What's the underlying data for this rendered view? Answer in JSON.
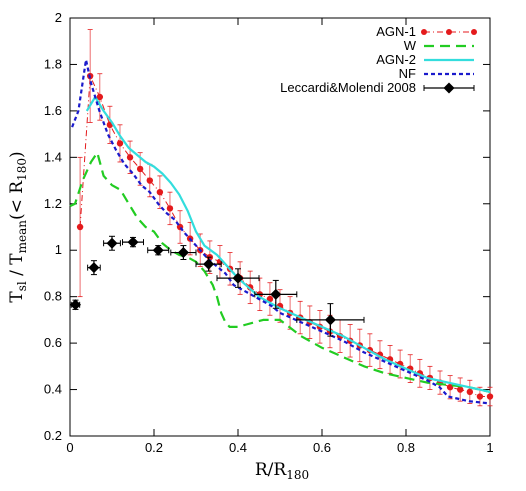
{
  "chart_data": {
    "type": "line",
    "xlim": [
      0,
      1
    ],
    "ylim": [
      0.2,
      2
    ],
    "xticks": [
      0,
      0.2,
      0.4,
      0.6,
      0.8,
      1
    ],
    "yticks": [
      0.2,
      0.4,
      0.6,
      0.8,
      1,
      1.2,
      1.4,
      1.6,
      1.8,
      2
    ],
    "xtick_labels": [
      "0",
      "0.2",
      "0.4",
      "0.6",
      "0.8",
      "1"
    ],
    "ytick_labels": [
      "0.2",
      "0.4",
      "0.6",
      "0.8",
      "1",
      "1.2",
      "1.4",
      "1.6",
      "1.8",
      "2"
    ],
    "xlabel": "R/R180",
    "ylabel": "Tsl / Tmean(< R180)",
    "grid": false,
    "legend_position": "top-right",
    "series": [
      {
        "name": "AGN-1",
        "color": "#e41a1c",
        "style": "dash-dot-points",
        "x": [
          0.024,
          0.048,
          0.071,
          0.095,
          0.119,
          0.143,
          0.167,
          0.19,
          0.214,
          0.238,
          0.262,
          0.286,
          0.31,
          0.333,
          0.357,
          0.381,
          0.405,
          0.429,
          0.452,
          0.476,
          0.5,
          0.524,
          0.548,
          0.571,
          0.595,
          0.619,
          0.643,
          0.667,
          0.69,
          0.714,
          0.738,
          0.762,
          0.786,
          0.81,
          0.833,
          0.857,
          0.881,
          0.905,
          0.929,
          0.952,
          0.976,
          1.0
        ],
        "y": [
          1.1,
          1.75,
          1.66,
          1.54,
          1.46,
          1.4,
          1.35,
          1.3,
          1.25,
          1.18,
          1.1,
          1.05,
          1.0,
          0.97,
          0.95,
          0.92,
          0.88,
          0.84,
          0.81,
          0.79,
          0.76,
          0.73,
          0.71,
          0.69,
          0.67,
          0.65,
          0.63,
          0.61,
          0.59,
          0.57,
          0.55,
          0.53,
          0.51,
          0.49,
          0.47,
          0.45,
          0.43,
          0.41,
          0.4,
          0.39,
          0.37,
          0.37
        ],
        "yerr": [
          0.3,
          0.2,
          0.1,
          0.08,
          0.08,
          0.07,
          0.07,
          0.07,
          0.07,
          0.07,
          0.07,
          0.07,
          0.07,
          0.07,
          0.07,
          0.07,
          0.07,
          0.07,
          0.07,
          0.07,
          0.07,
          0.07,
          0.07,
          0.07,
          0.07,
          0.07,
          0.07,
          0.07,
          0.07,
          0.07,
          0.06,
          0.06,
          0.06,
          0.06,
          0.06,
          0.05,
          0.05,
          0.05,
          0.05,
          0.05,
          0.04,
          0.04
        ]
      },
      {
        "name": "W",
        "color": "#22cc22",
        "style": "dashed",
        "x": [
          0.0,
          0.012,
          0.03,
          0.05,
          0.065,
          0.08,
          0.1,
          0.12,
          0.14,
          0.16,
          0.18,
          0.2,
          0.22,
          0.24,
          0.26,
          0.28,
          0.3,
          0.32,
          0.34,
          0.35,
          0.36,
          0.37,
          0.38,
          0.4,
          0.42,
          0.44,
          0.46,
          0.48,
          0.5,
          0.55,
          0.6,
          0.65,
          0.7,
          0.75,
          0.8,
          0.85,
          0.9,
          0.95,
          1.0
        ],
        "y": [
          1.19,
          1.2,
          1.3,
          1.38,
          1.42,
          1.32,
          1.28,
          1.26,
          1.2,
          1.14,
          1.1,
          1.08,
          1.03,
          1.0,
          0.98,
          0.97,
          0.95,
          0.91,
          0.85,
          0.8,
          0.73,
          0.69,
          0.67,
          0.67,
          0.68,
          0.69,
          0.7,
          0.7,
          0.7,
          0.63,
          0.58,
          0.54,
          0.5,
          0.47,
          0.45,
          0.43,
          0.42,
          0.41,
          0.39
        ]
      },
      {
        "name": "AGN-2",
        "color": "#33dddd",
        "style": "solid",
        "x": [
          0.04,
          0.06,
          0.08,
          0.1,
          0.12,
          0.14,
          0.16,
          0.18,
          0.2,
          0.22,
          0.24,
          0.26,
          0.28,
          0.3,
          0.32,
          0.35,
          0.4,
          0.45,
          0.5,
          0.55,
          0.6,
          0.65,
          0.7,
          0.75,
          0.8,
          0.85,
          0.9,
          0.95,
          1.0
        ],
        "y": [
          1.6,
          1.66,
          1.6,
          1.55,
          1.49,
          1.44,
          1.41,
          1.38,
          1.36,
          1.33,
          1.29,
          1.24,
          1.17,
          1.08,
          1.02,
          0.98,
          0.88,
          0.8,
          0.75,
          0.71,
          0.67,
          0.63,
          0.58,
          0.53,
          0.49,
          0.45,
          0.43,
          0.41,
          0.39
        ]
      },
      {
        "name": "NF",
        "color": "#1a1acc",
        "style": "dotted",
        "x": [
          0.005,
          0.02,
          0.038,
          0.05,
          0.07,
          0.09,
          0.11,
          0.13,
          0.15,
          0.17,
          0.19,
          0.21,
          0.23,
          0.25,
          0.27,
          0.29,
          0.31,
          0.33,
          0.35,
          0.37,
          0.39,
          0.42,
          0.45,
          0.48,
          0.5,
          0.55,
          0.6,
          0.65,
          0.7,
          0.75,
          0.8,
          0.85,
          0.88,
          0.9,
          0.95,
          1.0
        ],
        "y": [
          1.53,
          1.6,
          1.82,
          1.72,
          1.6,
          1.5,
          1.43,
          1.37,
          1.33,
          1.28,
          1.25,
          1.2,
          1.16,
          1.13,
          1.08,
          1.04,
          1.0,
          0.96,
          0.93,
          0.9,
          0.85,
          0.82,
          0.79,
          0.76,
          0.73,
          0.69,
          0.65,
          0.61,
          0.56,
          0.52,
          0.48,
          0.44,
          0.41,
          0.37,
          0.35,
          0.34
        ]
      },
      {
        "name": "Leccardi&Molendi 2008",
        "color": "#000000",
        "style": "points-errorbars",
        "x": [
          0.013,
          0.057,
          0.1,
          0.15,
          0.21,
          0.27,
          0.33,
          0.4,
          0.49,
          0.62
        ],
        "y": [
          0.765,
          0.925,
          1.03,
          1.035,
          1.0,
          0.99,
          0.94,
          0.88,
          0.81,
          0.7
        ],
        "xerr": [
          0.01,
          0.015,
          0.02,
          0.025,
          0.025,
          0.03,
          0.03,
          0.05,
          0.05,
          0.08
        ],
        "yerr": [
          0.02,
          0.03,
          0.03,
          0.02,
          0.02,
          0.03,
          0.03,
          0.04,
          0.06,
          0.07
        ]
      }
    ]
  }
}
